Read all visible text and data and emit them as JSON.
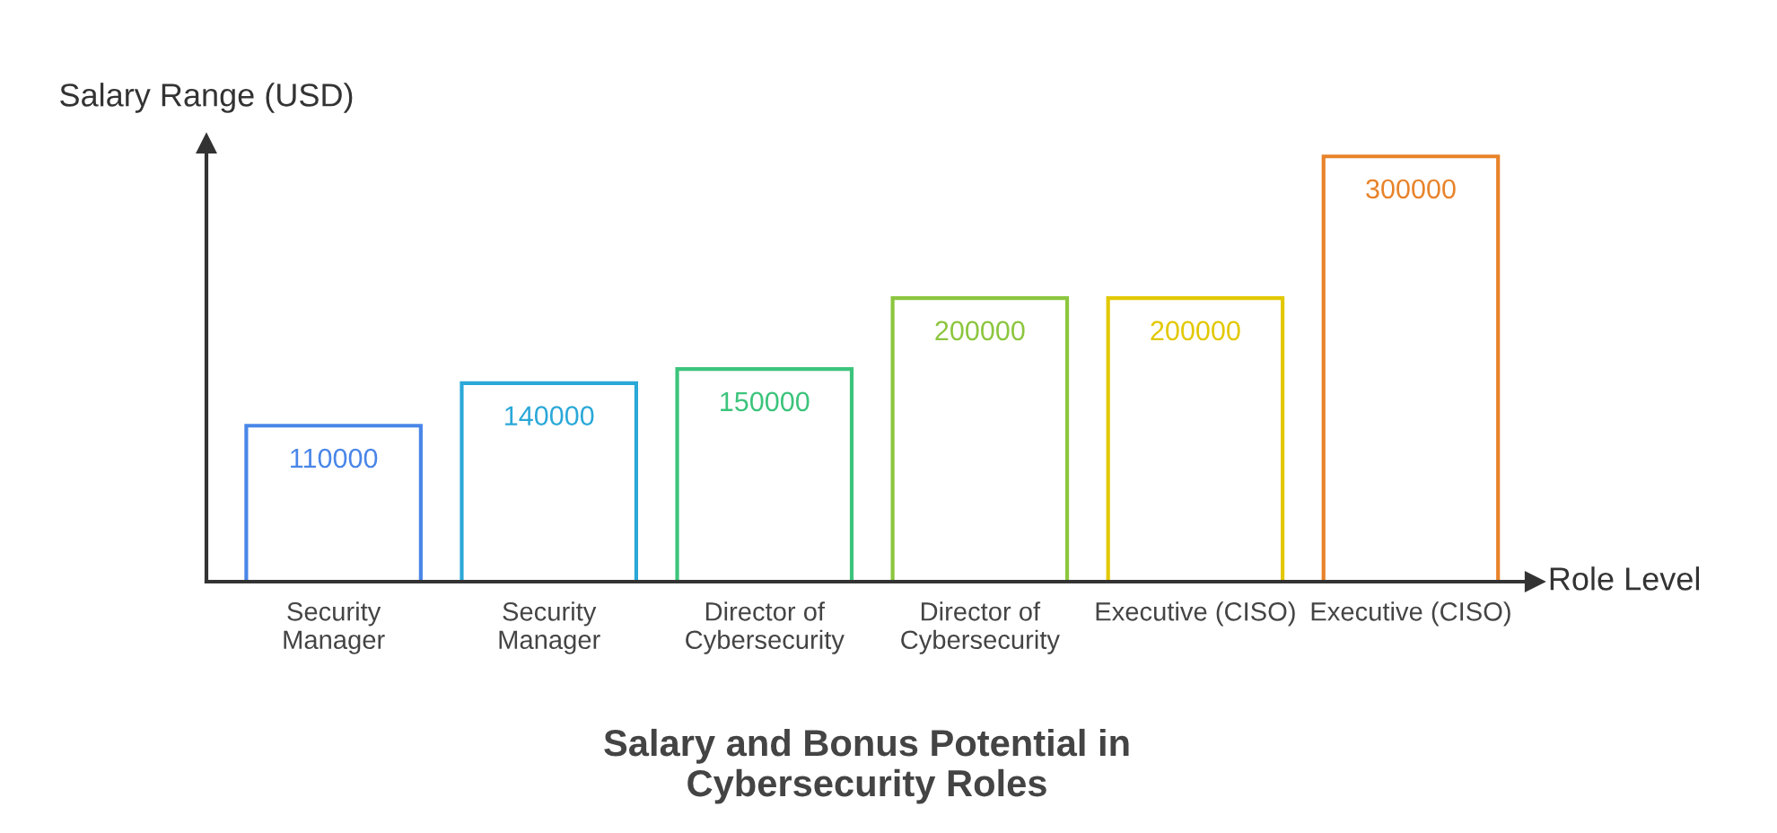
{
  "chart_data": {
    "type": "bar",
    "title": "Salary and Bonus Potential in\nCybersecurity Roles",
    "xlabel": "Role Level",
    "ylabel": "Salary Range (USD)",
    "categories": [
      "Security\nManager",
      "Security\nManager",
      "Director of\nCybersecurity",
      "Director of\nCybersecurity",
      "Executive (CISO)",
      "Executive (CISO)"
    ],
    "values": [
      110000,
      140000,
      150000,
      200000,
      200000,
      300000
    ],
    "colors": [
      "#4a86e8",
      "#2aa8d8",
      "#3cc47c",
      "#8cc63f",
      "#e2c800",
      "#e8832a"
    ],
    "data_labels": true,
    "grid": false,
    "legend": false
  }
}
